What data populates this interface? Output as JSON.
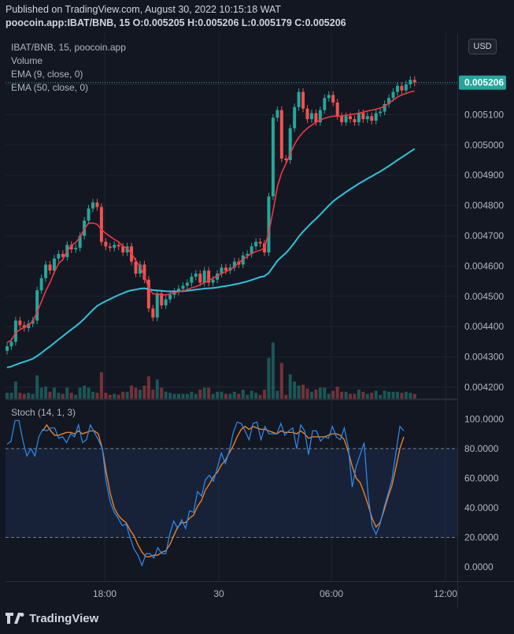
{
  "header": {
    "published": "Published on TradingView.com, August 30, 2022 10:15:18 WAT",
    "symbol_line": "poocoin.app:IBAT/BNB, 15 O:0.005205 H:0.005206 L:0.005179 C:0.005206"
  },
  "legend": {
    "symbol": "IBAT/BNB, 15, poocoin.app",
    "volume": "Volume",
    "ema_fast": "EMA (9, close, 0)",
    "ema_slow": "EMA (50, close, 0)",
    "stoch": "Stoch (14, 1, 3)"
  },
  "currency_button": "USD",
  "footer_logo": "TradingView",
  "colors": {
    "background": "#131722",
    "up": "#26a69a",
    "down": "#ef5350",
    "ema_fast": "#f23645",
    "ema_slow": "#2ec4d8",
    "stoch_k": "#2a8ef5",
    "stoch_d": "#f07f1e",
    "stoch_band": "#1c2c4a",
    "last_price_bg": "#26a69a"
  },
  "chart_data": [
    {
      "type": "candlestick",
      "title": "IBAT/BNB, 15, poocoin.app",
      "x_tick_labels": [
        "18:00",
        "30",
        "06:00",
        "12:00"
      ],
      "y_tick_labels": [
        "0.004200",
        "0.004300",
        "0.004400",
        "0.004500",
        "0.004600",
        "0.004700",
        "0.004800",
        "0.004900",
        "0.005000",
        "0.005100",
        "0.005200"
      ],
      "ylim": [
        0.00417,
        0.00526
      ],
      "last_price": "0.005206",
      "close": [
        0.004335,
        0.00435,
        0.00442,
        0.004405,
        0.004395,
        0.00441,
        0.00442,
        0.00452,
        0.00456,
        0.004605,
        0.004585,
        0.004625,
        0.00464,
        0.00463,
        0.00467,
        0.004655,
        0.00466,
        0.0047,
        0.00475,
        0.00479,
        0.00481,
        0.004795,
        0.00468,
        0.004665,
        0.00466,
        0.00467,
        0.004665,
        0.004645,
        0.004665,
        0.004615,
        0.004575,
        0.004605,
        0.004555,
        0.00446,
        0.00443,
        0.00451,
        0.00447,
        0.00449,
        0.004505,
        0.004515,
        0.004525,
        0.004535,
        0.004545,
        0.004565,
        0.004575,
        0.004545,
        0.004585,
        0.004545,
        0.004555,
        0.004575,
        0.004595,
        0.004585,
        0.004595,
        0.004615,
        0.004605,
        0.004635,
        0.00464,
        0.004665,
        0.00468,
        0.004675,
        0.004645,
        0.00483,
        0.00509,
        0.005115,
        0.004955,
        0.00495,
        0.005055,
        0.005125,
        0.005175,
        0.00512,
        0.005085,
        0.005105,
        0.005075,
        0.005115,
        0.005155,
        0.005165,
        0.00514,
        0.005095,
        0.005075,
        0.005095,
        0.005085,
        0.005075,
        0.005105,
        0.005085,
        0.005095,
        0.00508,
        0.005105,
        0.00511,
        0.005135,
        0.005155,
        0.005175,
        0.005195,
        0.00518,
        0.0052,
        0.005215,
        0.005206
      ],
      "ema_9": [
        0.004348,
        0.004355,
        0.00438,
        0.00439,
        0.004398,
        0.004405,
        0.004418,
        0.004448,
        0.004482,
        0.004518,
        0.004545,
        0.00458,
        0.004608,
        0.004622,
        0.00465,
        0.004668,
        0.004678,
        0.004695,
        0.004722,
        0.004742,
        0.004742,
        0.004738,
        0.00472,
        0.004708,
        0.004698,
        0.004688,
        0.00468,
        0.004665,
        0.004658,
        0.004642,
        0.004618,
        0.004598,
        0.004568,
        0.004528,
        0.004508,
        0.004508,
        0.004505,
        0.004505,
        0.004508,
        0.004512,
        0.004515,
        0.004518,
        0.004522,
        0.004528,
        0.004532,
        0.004538,
        0.004545,
        0.004552,
        0.00456,
        0.004568,
        0.004575,
        0.004582,
        0.004588,
        0.004598,
        0.004612,
        0.004622,
        0.004632,
        0.004642,
        0.004648,
        0.004652,
        0.00466,
        0.00471,
        0.004782,
        0.004862,
        0.004908,
        0.004938,
        0.004972,
        0.005002,
        0.005025,
        0.005042,
        0.005055,
        0.005065,
        0.005075,
        0.005082,
        0.005088,
        0.005092,
        0.005095,
        0.005095,
        0.005095,
        0.005098,
        0.0051,
        0.005102,
        0.005105,
        0.005108,
        0.005112,
        0.005115,
        0.005118,
        0.005122,
        0.005128,
        0.005138,
        0.005148,
        0.005158,
        0.005165,
        0.00517,
        0.005175,
        0.005178
      ]
    },
    {
      "type": "line",
      "title": "Stoch (14, 1, 3)",
      "y_tick_labels": [
        "0.0000",
        "20.0000",
        "40.0000",
        "60.0000",
        "80.0000",
        "100.0000"
      ],
      "bands": [
        20,
        80
      ],
      "ylim": [
        -7,
        108
      ],
      "series": [
        {
          "name": "%K",
          "values": [
            83,
            85,
            99,
            99,
            85,
            75,
            80,
            75,
            88,
            93,
            92,
            94,
            94,
            87,
            88,
            84,
            90,
            88,
            96,
            84,
            86,
            96,
            91,
            86,
            80,
            57,
            44,
            37,
            33,
            28,
            29,
            20,
            12,
            8,
            1,
            9,
            9,
            6,
            13,
            9,
            9,
            22,
            31,
            26,
            32,
            26,
            38,
            37,
            51,
            48,
            59,
            62,
            58,
            67,
            77,
            70,
            78,
            91,
            98,
            97,
            92,
            86,
            97,
            98,
            86,
            95,
            90,
            90,
            90,
            97,
            89,
            92,
            94,
            80,
            96,
            92,
            76,
            92,
            92,
            85,
            88,
            87,
            95,
            88,
            86,
            94,
            81,
            54,
            68,
            76,
            84,
            49,
            28,
            22,
            29,
            40,
            49,
            59,
            77,
            95,
            92
          ]
        },
        {
          "name": "%D",
          "values": [
            null,
            null,
            null,
            null,
            null,
            null,
            null,
            null,
            null,
            92,
            96,
            92,
            89,
            89,
            90,
            91,
            91,
            90,
            92,
            90,
            91,
            92,
            92,
            90,
            80,
            64,
            50,
            40,
            35,
            32,
            30,
            25,
            21,
            15,
            10,
            7,
            7,
            8,
            8,
            10,
            11,
            15,
            21,
            27,
            30,
            30,
            33,
            35,
            41,
            45,
            52,
            56,
            61,
            64,
            69,
            72,
            77,
            82,
            88,
            93,
            95,
            93,
            95,
            94,
            93,
            93,
            92,
            91,
            90,
            92,
            91,
            91,
            91,
            90,
            92,
            90,
            87,
            88,
            88,
            88,
            88,
            89,
            90,
            90,
            89,
            86,
            78,
            68,
            60,
            57,
            50,
            42,
            33,
            27,
            30,
            38,
            47,
            55,
            67,
            80,
            88
          ]
        }
      ]
    }
  ]
}
